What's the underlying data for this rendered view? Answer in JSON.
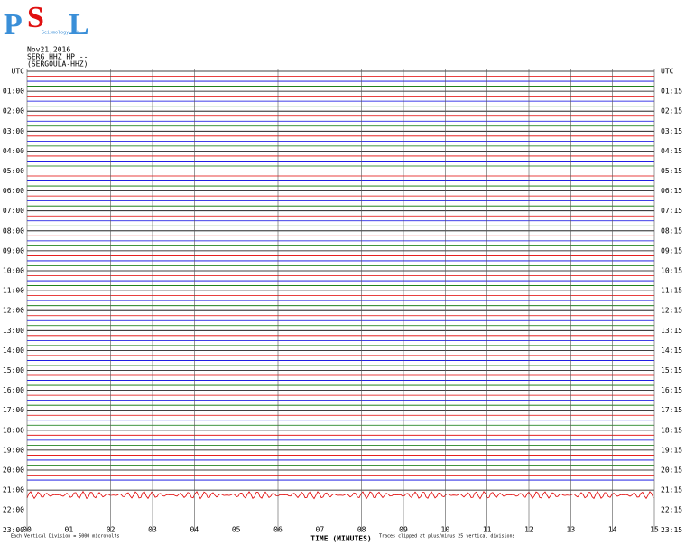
{
  "header": {
    "logo_p": "P",
    "logo_s": "S",
    "logo_l": "L",
    "logo_sub": "Seismology Lab",
    "date": "Nov21,2016",
    "station": "SERG HHZ HP --",
    "channel": "(SERGOULA-HHZ)"
  },
  "chart_data": {
    "type": "helicorder",
    "left_labels": [
      "UTC",
      "01:00",
      "02:00",
      "03:00",
      "04:00",
      "05:00",
      "06:00",
      "07:00",
      "08:00",
      "09:00",
      "10:00",
      "11:00",
      "12:00",
      "13:00",
      "14:00",
      "15:00",
      "16:00",
      "17:00",
      "18:00",
      "19:00",
      "20:00",
      "21:00",
      "22:00",
      "23:00"
    ],
    "right_labels": [
      "UTC",
      "01:15",
      "02:15",
      "03:15",
      "04:15",
      "05:15",
      "06:15",
      "07:15",
      "08:15",
      "09:15",
      "10:15",
      "11:15",
      "12:15",
      "13:15",
      "14:15",
      "15:15",
      "16:15",
      "17:15",
      "18:15",
      "19:15",
      "20:15",
      "21:15",
      "22:15",
      "23:15"
    ],
    "xlim": [
      0,
      15
    ],
    "xticks": [
      {
        "value": 0,
        "label": "00"
      },
      {
        "value": 1,
        "label": "01"
      },
      {
        "value": 2,
        "label": "02"
      },
      {
        "value": 3,
        "label": "03"
      },
      {
        "value": 4,
        "label": "04"
      },
      {
        "value": 5,
        "label": "05"
      },
      {
        "value": 6,
        "label": "06"
      },
      {
        "value": 7,
        "label": "07"
      },
      {
        "value": 8,
        "label": "08"
      },
      {
        "value": 9,
        "label": "09"
      },
      {
        "value": 10,
        "label": "10"
      },
      {
        "value": 11,
        "label": "11"
      },
      {
        "value": 12,
        "label": "12"
      },
      {
        "value": 13,
        "label": "13"
      },
      {
        "value": 14,
        "label": "14"
      },
      {
        "value": 15,
        "label": "15"
      }
    ],
    "x_label": "TIME (MINUTES)",
    "trace_colors": [
      "#000000",
      "#e00000",
      "#0000e0",
      "#007000"
    ],
    "grid": true,
    "footer_left": "Each Vertical Division = 5000 microvolts",
    "footer_right": "Traces clipped at plus/minus 25 vertical divisions"
  }
}
